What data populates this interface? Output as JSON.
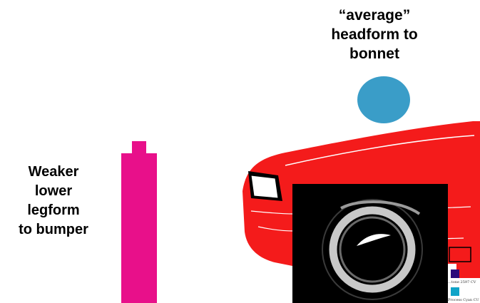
{
  "headform": {
    "label_lines": [
      "“average”",
      "headform  to",
      "bonnet"
    ],
    "color": "#3a9dc8"
  },
  "legform": {
    "label_lines": [
      "Weaker",
      "lower",
      "legform",
      "to bumper"
    ],
    "color": "#e8108a"
  },
  "car": {
    "body_color": "#f41b1b",
    "wheel_bg": "#000000",
    "tyre_color": "#c8c8c8"
  },
  "swatches": {
    "items": [
      {
        "label": "...tone 2597 CV",
        "color": "#2a0a7a"
      },
      {
        "label": "Process Cyan CU",
        "color": "#10a4c8"
      }
    ]
  }
}
